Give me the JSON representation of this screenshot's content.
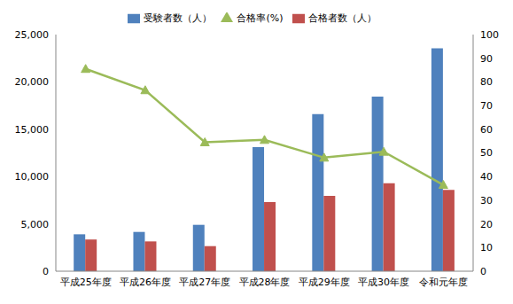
{
  "chart_data": {
    "type": "bar",
    "categories": [
      "平成25年度",
      "平成26年度",
      "平成27年度",
      "平成28年度",
      "平成29年度",
      "平成30年度",
      "令和元年度"
    ],
    "series": [
      {
        "name": "受験者数（人）",
        "color": "#4f81bd",
        "type": "bar",
        "values": [
          3900,
          4150,
          4900,
          13100,
          16600,
          18450,
          23550
        ]
      },
      {
        "name": "合格者数（人）",
        "color": "#c0504d",
        "type": "bar",
        "values": [
          3350,
          3150,
          2650,
          7300,
          7950,
          9300,
          8600
        ]
      },
      {
        "name": "合格率(%)",
        "color": "#9bbb59",
        "type": "line",
        "axis": "y2",
        "marker": "triangle",
        "values": [
          85.5,
          76.5,
          54.5,
          55.5,
          48,
          50.5,
          36.5
        ]
      }
    ],
    "ylim": [
      0,
      25000
    ],
    "yticks": [
      0,
      {
        "value": 5000,
        "label": "5,000"
      },
      {
        "value": 10000,
        "label": "10,000"
      },
      {
        "value": 15000,
        "label": "15,000"
      },
      {
        "value": 20000,
        "label": "20,000"
      },
      {
        "value": 25000,
        "label": "25,000"
      }
    ],
    "y2lim": [
      0,
      100
    ],
    "y2ticks": [
      0,
      10,
      20,
      30,
      40,
      50,
      60,
      70,
      80,
      90,
      100
    ],
    "grid": false,
    "legend": "top"
  }
}
